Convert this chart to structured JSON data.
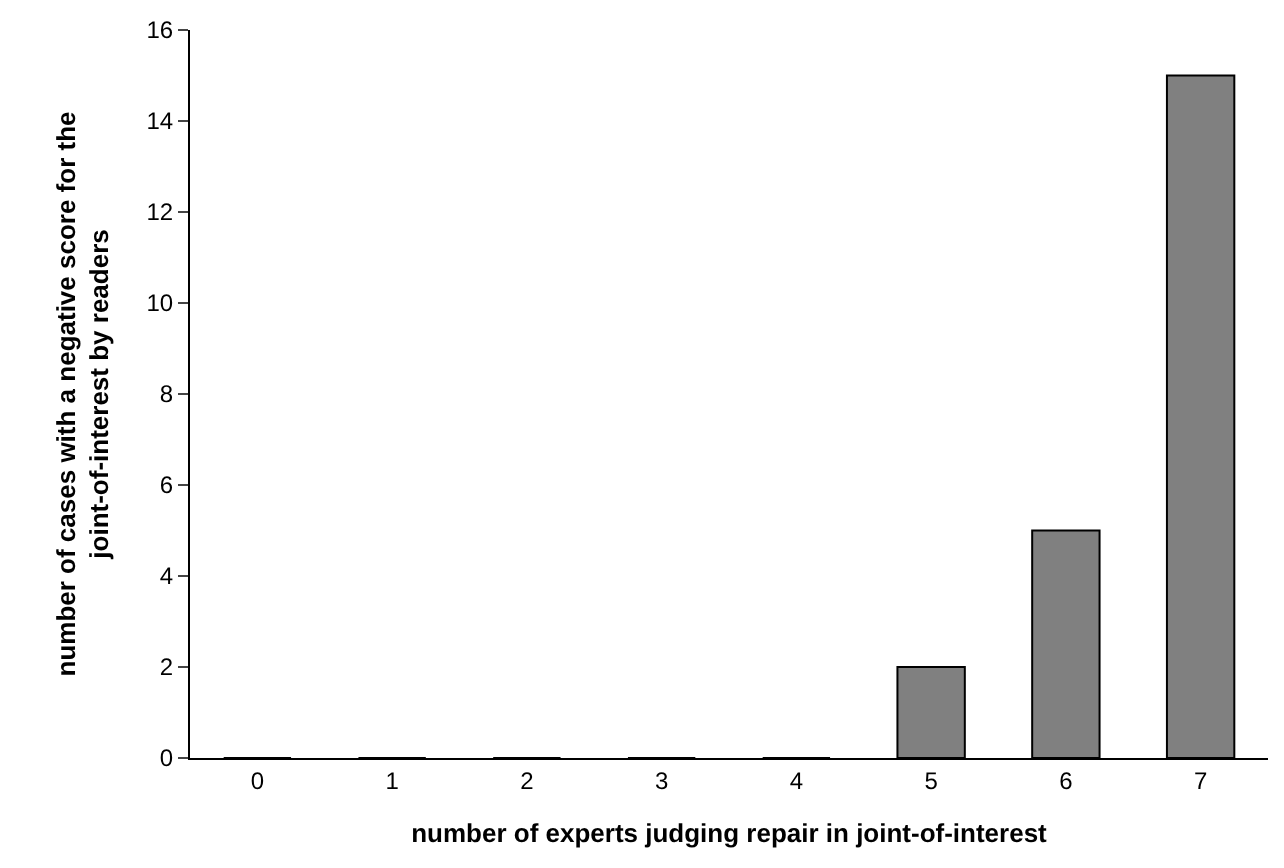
{
  "chart_data": {
    "type": "bar",
    "xlabel": "number of experts judging repair in joint-of-interest",
    "ylabel": "number of cases with a negative score for the\njoint-of-interest by readers",
    "categories": [
      "0",
      "1",
      "2",
      "3",
      "4",
      "5",
      "6",
      "7"
    ],
    "values": [
      0,
      0,
      0,
      0,
      0,
      2,
      5,
      15
    ],
    "color": "#808080",
    "ylim": [
      0,
      16
    ],
    "yticks": [
      0,
      2,
      4,
      6,
      8,
      10,
      12,
      14,
      16
    ],
    "legend": false
  }
}
